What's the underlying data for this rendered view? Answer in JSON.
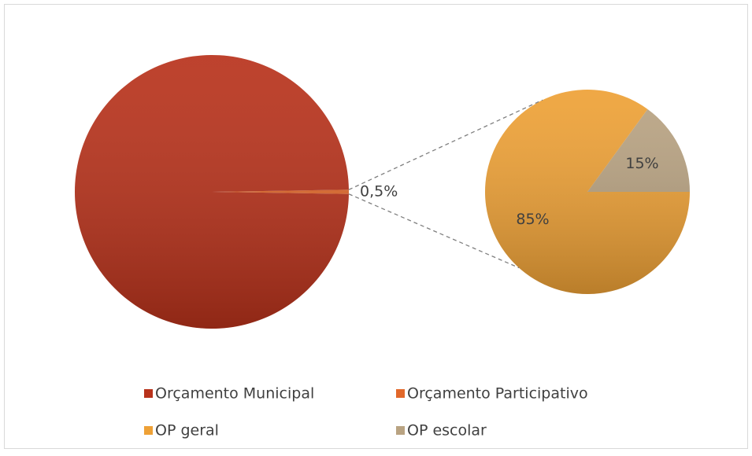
{
  "chart_data": {
    "type": "pie_of_pie",
    "categories": [
      "Orçamento Municipal",
      "Orçamento Participativo"
    ],
    "values": [
      99.5,
      0.5
    ],
    "value_labels": [
      null,
      "0,5%"
    ],
    "colors": [
      "#b8321b",
      "#e2682a"
    ],
    "secondary": {
      "categories": [
        "OP geral",
        "OP escolar"
      ],
      "values": [
        85,
        15
      ],
      "value_labels": [
        "85%",
        "15%"
      ],
      "colors": [
        "#eea136",
        "#b9a382"
      ]
    }
  }
}
